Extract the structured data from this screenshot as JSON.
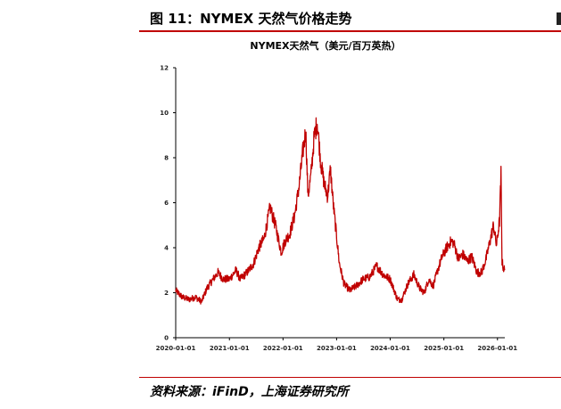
{
  "figure": {
    "heading": "图 11：NYMEX 天然气价格走势",
    "source": "资料来源：iFinD，上海证券研究所"
  },
  "colors": {
    "accent_rule": "#c00000",
    "series_line": "#c00000",
    "axis": "#000000"
  },
  "chart_data": {
    "type": "line",
    "title": "NYMEX天然气（美元/百万英热）",
    "xlabel": "",
    "ylabel": "",
    "ylim": [
      0,
      12
    ],
    "xlim": [
      "2020-01-01",
      "2026-02-20"
    ],
    "y_ticks": [
      "0",
      "2",
      "4",
      "6",
      "8",
      "10",
      "12"
    ],
    "x_ticks": [
      "2020-01-01",
      "2021-01-01",
      "2022-01-01",
      "2023-01-01",
      "2024-01-01",
      "2025-01-01",
      "2026-01-01"
    ],
    "grid": false,
    "legend": "none",
    "series": [
      {
        "x": [
          "2020-01-01",
          "2020-02-15",
          "2020-04-01",
          "2020-05-15",
          "2020-06-25",
          "2020-08-01",
          "2020-09-01",
          "2020-10-15",
          "2020-11-20",
          "2021-01-01",
          "2021-02-15",
          "2021-03-15",
          "2021-05-01",
          "2021-06-15",
          "2021-07-20",
          "2021-08-25",
          "2021-10-05",
          "2021-11-10",
          "2021-12-20",
          "2022-01-15",
          "2022-02-15",
          "2022-03-20",
          "2022-04-20",
          "2022-05-15",
          "2022-06-05",
          "2022-06-20",
          "2022-07-10",
          "2022-08-01",
          "2022-08-22",
          "2022-09-15",
          "2022-10-10",
          "2022-11-01",
          "2022-11-20",
          "2022-12-10",
          "2023-01-01",
          "2023-01-20",
          "2023-02-20",
          "2023-04-01",
          "2023-05-15",
          "2023-07-01",
          "2023-08-15",
          "2023-10-01",
          "2023-11-15",
          "2024-01-01",
          "2024-02-20",
          "2024-03-20",
          "2024-05-01",
          "2024-06-10",
          "2024-07-20",
          "2024-08-20",
          "2024-09-20",
          "2024-10-20",
          "2024-11-20",
          "2024-12-20",
          "2025-01-20",
          "2025-02-20",
          "2025-03-10",
          "2025-04-10",
          "2025-05-10",
          "2025-06-10",
          "2025-07-10",
          "2025-08-15",
          "2025-09-15",
          "2025-10-15",
          "2025-11-15",
          "2025-12-05",
          "2025-12-25",
          "2026-01-15",
          "2026-01-25",
          "2026-02-01",
          "2026-02-10",
          "2026-02-20"
        ],
        "y": [
          2.1,
          1.8,
          1.7,
          1.8,
          1.6,
          2.2,
          2.5,
          2.9,
          2.6,
          2.6,
          3.0,
          2.6,
          2.9,
          3.3,
          4.0,
          4.4,
          5.8,
          5.0,
          3.8,
          4.3,
          4.6,
          5.4,
          6.7,
          8.2,
          9.2,
          6.3,
          7.2,
          8.9,
          9.6,
          7.8,
          6.8,
          6.3,
          7.5,
          5.9,
          4.5,
          3.3,
          2.4,
          2.1,
          2.3,
          2.6,
          2.7,
          3.2,
          2.8,
          2.6,
          1.7,
          1.7,
          2.4,
          2.8,
          2.2,
          2.0,
          2.6,
          2.3,
          3.0,
          3.6,
          4.0,
          4.3,
          4.2,
          3.5,
          3.7,
          3.4,
          3.6,
          2.9,
          2.9,
          3.5,
          4.4,
          5.0,
          4.1,
          5.2,
          7.3,
          3.4,
          3.1,
          3.0
        ]
      }
    ]
  }
}
